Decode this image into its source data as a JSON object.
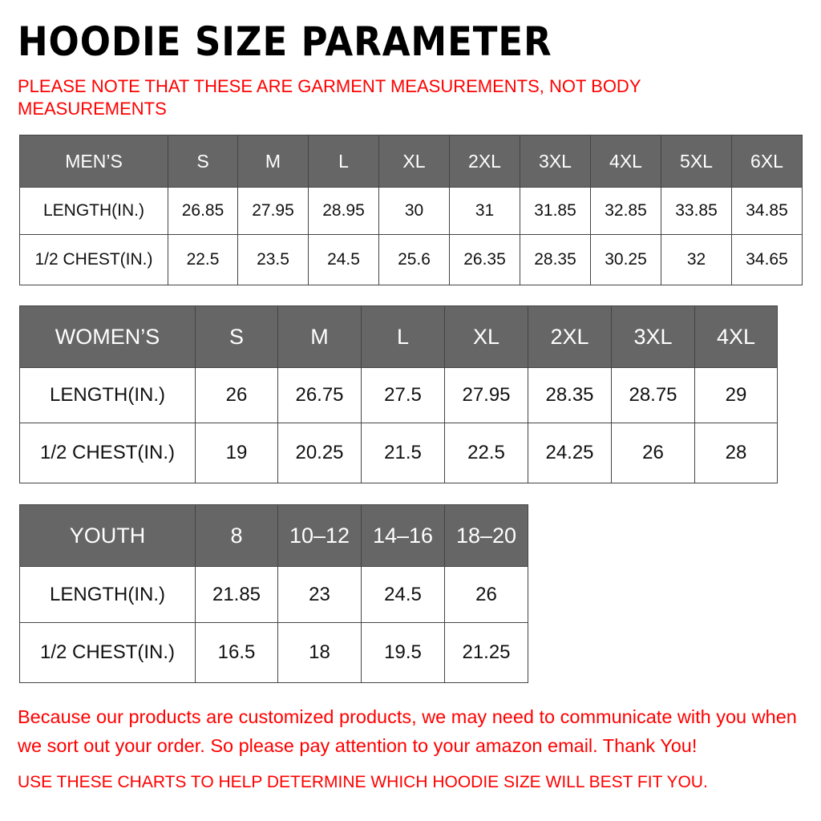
{
  "title": "HOODIE SIZE PARAMETER",
  "note": "PLEASE NOTE THAT THESE ARE GARMENT MEASUREMENTS, NOT BODY MEASUREMENTS",
  "colors": {
    "header_bg": "#666666",
    "header_text": "#ffffff",
    "note_text": "#ff0000"
  },
  "tables": {
    "men": {
      "header": [
        "MEN’S",
        "S",
        "M",
        "L",
        "XL",
        "2XL",
        "3XL",
        "4XL",
        "5XL",
        "6XL"
      ],
      "rows": [
        [
          "LENGTH(IN.)",
          "26.85",
          "27.95",
          "28.95",
          "30",
          "31",
          "31.85",
          "32.85",
          "33.85",
          "34.85"
        ],
        [
          "1/2 CHEST(IN.)",
          "22.5",
          "23.5",
          "24.5",
          "25.6",
          "26.35",
          "28.35",
          "30.25",
          "32",
          "34.65"
        ]
      ]
    },
    "women": {
      "header": [
        "WOMEN’S",
        "S",
        "M",
        "L",
        "XL",
        "2XL",
        "3XL",
        "4XL"
      ],
      "rows": [
        [
          "LENGTH(IN.)",
          "26",
          "26.75",
          "27.5",
          "27.95",
          "28.35",
          "28.75",
          "29"
        ],
        [
          "1/2 CHEST(IN.)",
          "19",
          "20.25",
          "21.5",
          "22.5",
          "24.25",
          "26",
          "28"
        ]
      ]
    },
    "youth": {
      "header": [
        "YOUTH",
        "8",
        "10–12",
        "14–16",
        "18–20"
      ],
      "rows": [
        [
          "LENGTH(IN.)",
          "21.85",
          "23",
          "24.5",
          "26"
        ],
        [
          "1/2 CHEST(IN.)",
          "16.5",
          "18",
          "19.5",
          "21.25"
        ]
      ]
    }
  },
  "footer": {
    "message": "Because our products are customized products, we may need to communicate with you when we sort out your order. So please pay attention to your amazon email. Thank You!",
    "instruction": "USE THESE CHARTS TO HELP DETERMINE WHICH HOODIE SIZE WILL BEST FIT YOU."
  }
}
